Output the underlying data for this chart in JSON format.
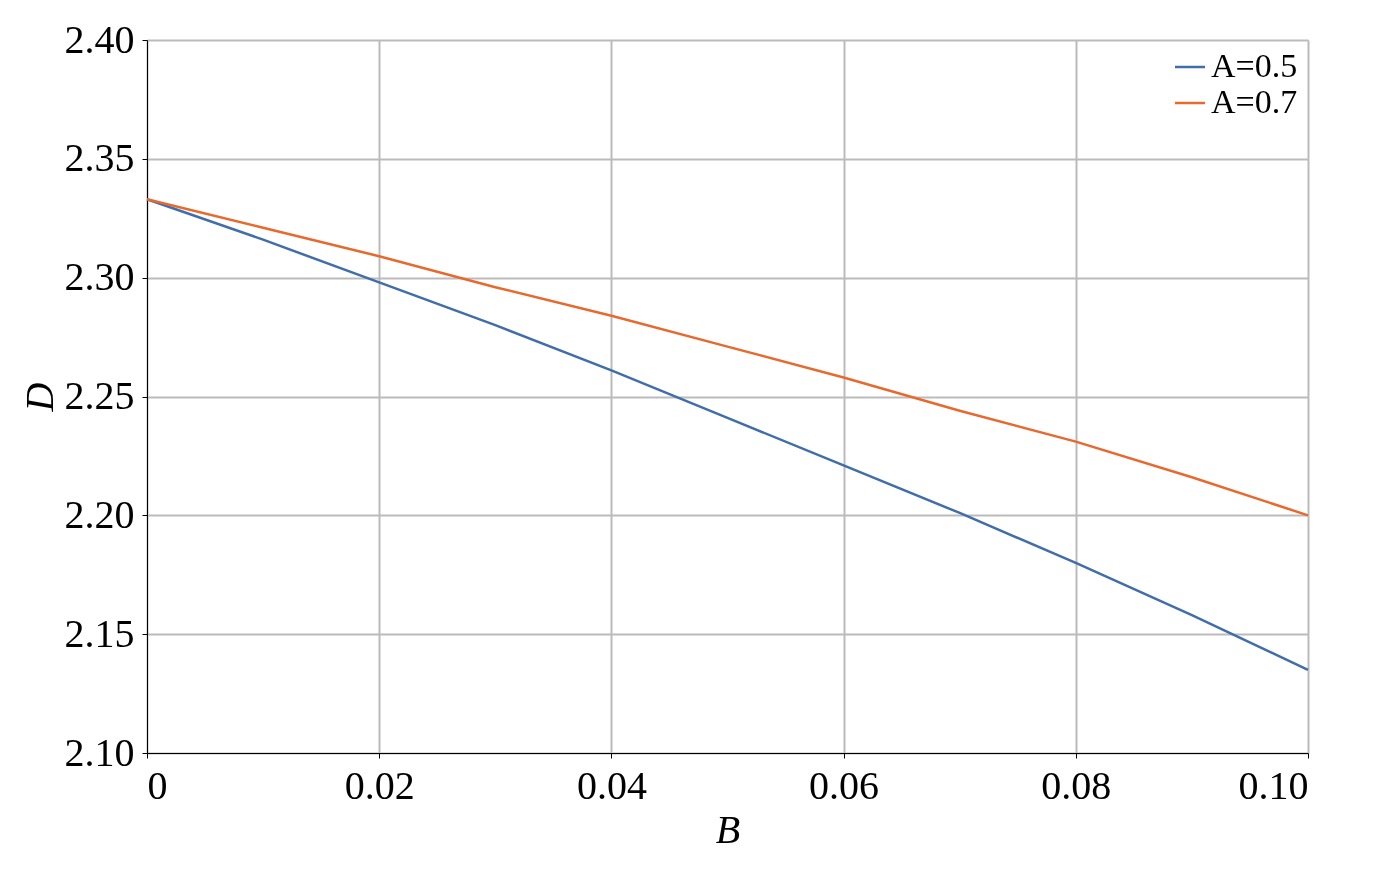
{
  "chart_data": {
    "type": "line",
    "xlabel": "B",
    "ylabel": "D",
    "x": [
      0,
      0.01,
      0.02,
      0.03,
      0.04,
      0.05,
      0.06,
      0.07,
      0.08,
      0.09,
      0.1
    ],
    "series": [
      {
        "name": "A=0.5",
        "color": "#3f6eaa",
        "values": [
          2.333,
          2.316,
          2.298,
          2.28,
          2.261,
          2.241,
          2.221,
          2.201,
          2.18,
          2.158,
          2.135
        ]
      },
      {
        "name": "A=0.7",
        "color": "#e8692d",
        "values": [
          2.333,
          2.321,
          2.309,
          2.296,
          2.284,
          2.271,
          2.258,
          2.244,
          2.231,
          2.216,
          2.2
        ]
      }
    ],
    "xlim": [
      0,
      0.1
    ],
    "xticks": [
      0,
      {
        "value": 0.02,
        "label": "0.02"
      },
      {
        "value": 0.04,
        "label": "0.04"
      },
      {
        "value": 0.06,
        "label": "0.06"
      },
      {
        "value": 0.08,
        "label": "0.08"
      },
      {
        "value": 0.1,
        "label": "0.10"
      }
    ],
    "ylim": [
      2.1,
      2.4
    ],
    "yticks": [
      {
        "value": 2.1,
        "label": "2.10"
      },
      {
        "value": 2.15,
        "label": "2.15"
      },
      {
        "value": 2.2,
        "label": "2.20"
      },
      {
        "value": 2.25,
        "label": "2.25"
      },
      {
        "value": 2.3,
        "label": "2.30"
      },
      {
        "value": 2.35,
        "label": "2.35"
      },
      {
        "value": 2.4,
        "label": "2.40"
      }
    ],
    "grid": true,
    "legend": "top right",
    "marker": "none",
    "line_style": "solid"
  }
}
